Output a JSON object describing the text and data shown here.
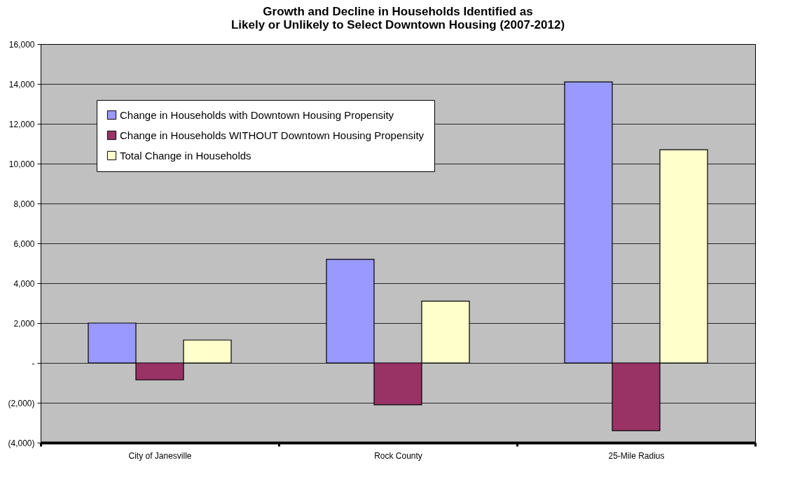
{
  "chart_data": {
    "type": "bar",
    "title": "Growth and Decline in Households Identified as\nLikely or Unlikely to Select Downtown Housing (2007-2012)",
    "categories": [
      "City of Janesville",
      "Rock County",
      "25-Mile Radius"
    ],
    "series": [
      {
        "name": "Change in Households with Downtown Housing Propensity",
        "color": "#9999ff",
        "values": [
          2000,
          5200,
          14100
        ]
      },
      {
        "name": "Change in Households WITHOUT Downtown Housing Propensity",
        "color": "#993366",
        "values": [
          -850,
          -2100,
          -3400
        ]
      },
      {
        "name": "Total Change in Households",
        "color": "#ffffcc",
        "values": [
          1150,
          3100,
          10700
        ]
      }
    ],
    "ylim": [
      -4000,
      16000
    ],
    "yticks": [
      {
        "value": -4000,
        "label": "(4,000)"
      },
      {
        "value": -2000,
        "label": "(2,000)"
      },
      {
        "value": 0,
        "label": "-"
      },
      {
        "value": 2000,
        "label": "2,000"
      },
      {
        "value": 4000,
        "label": "4,000"
      },
      {
        "value": 6000,
        "label": "6,000"
      },
      {
        "value": 8000,
        "label": "8,000"
      },
      {
        "value": 10000,
        "label": "10,000"
      },
      {
        "value": 12000,
        "label": "12,000"
      },
      {
        "value": 14000,
        "label": "14,000"
      },
      {
        "value": 16000,
        "label": "16,000"
      }
    ],
    "grid": "y",
    "legend": "top left"
  }
}
